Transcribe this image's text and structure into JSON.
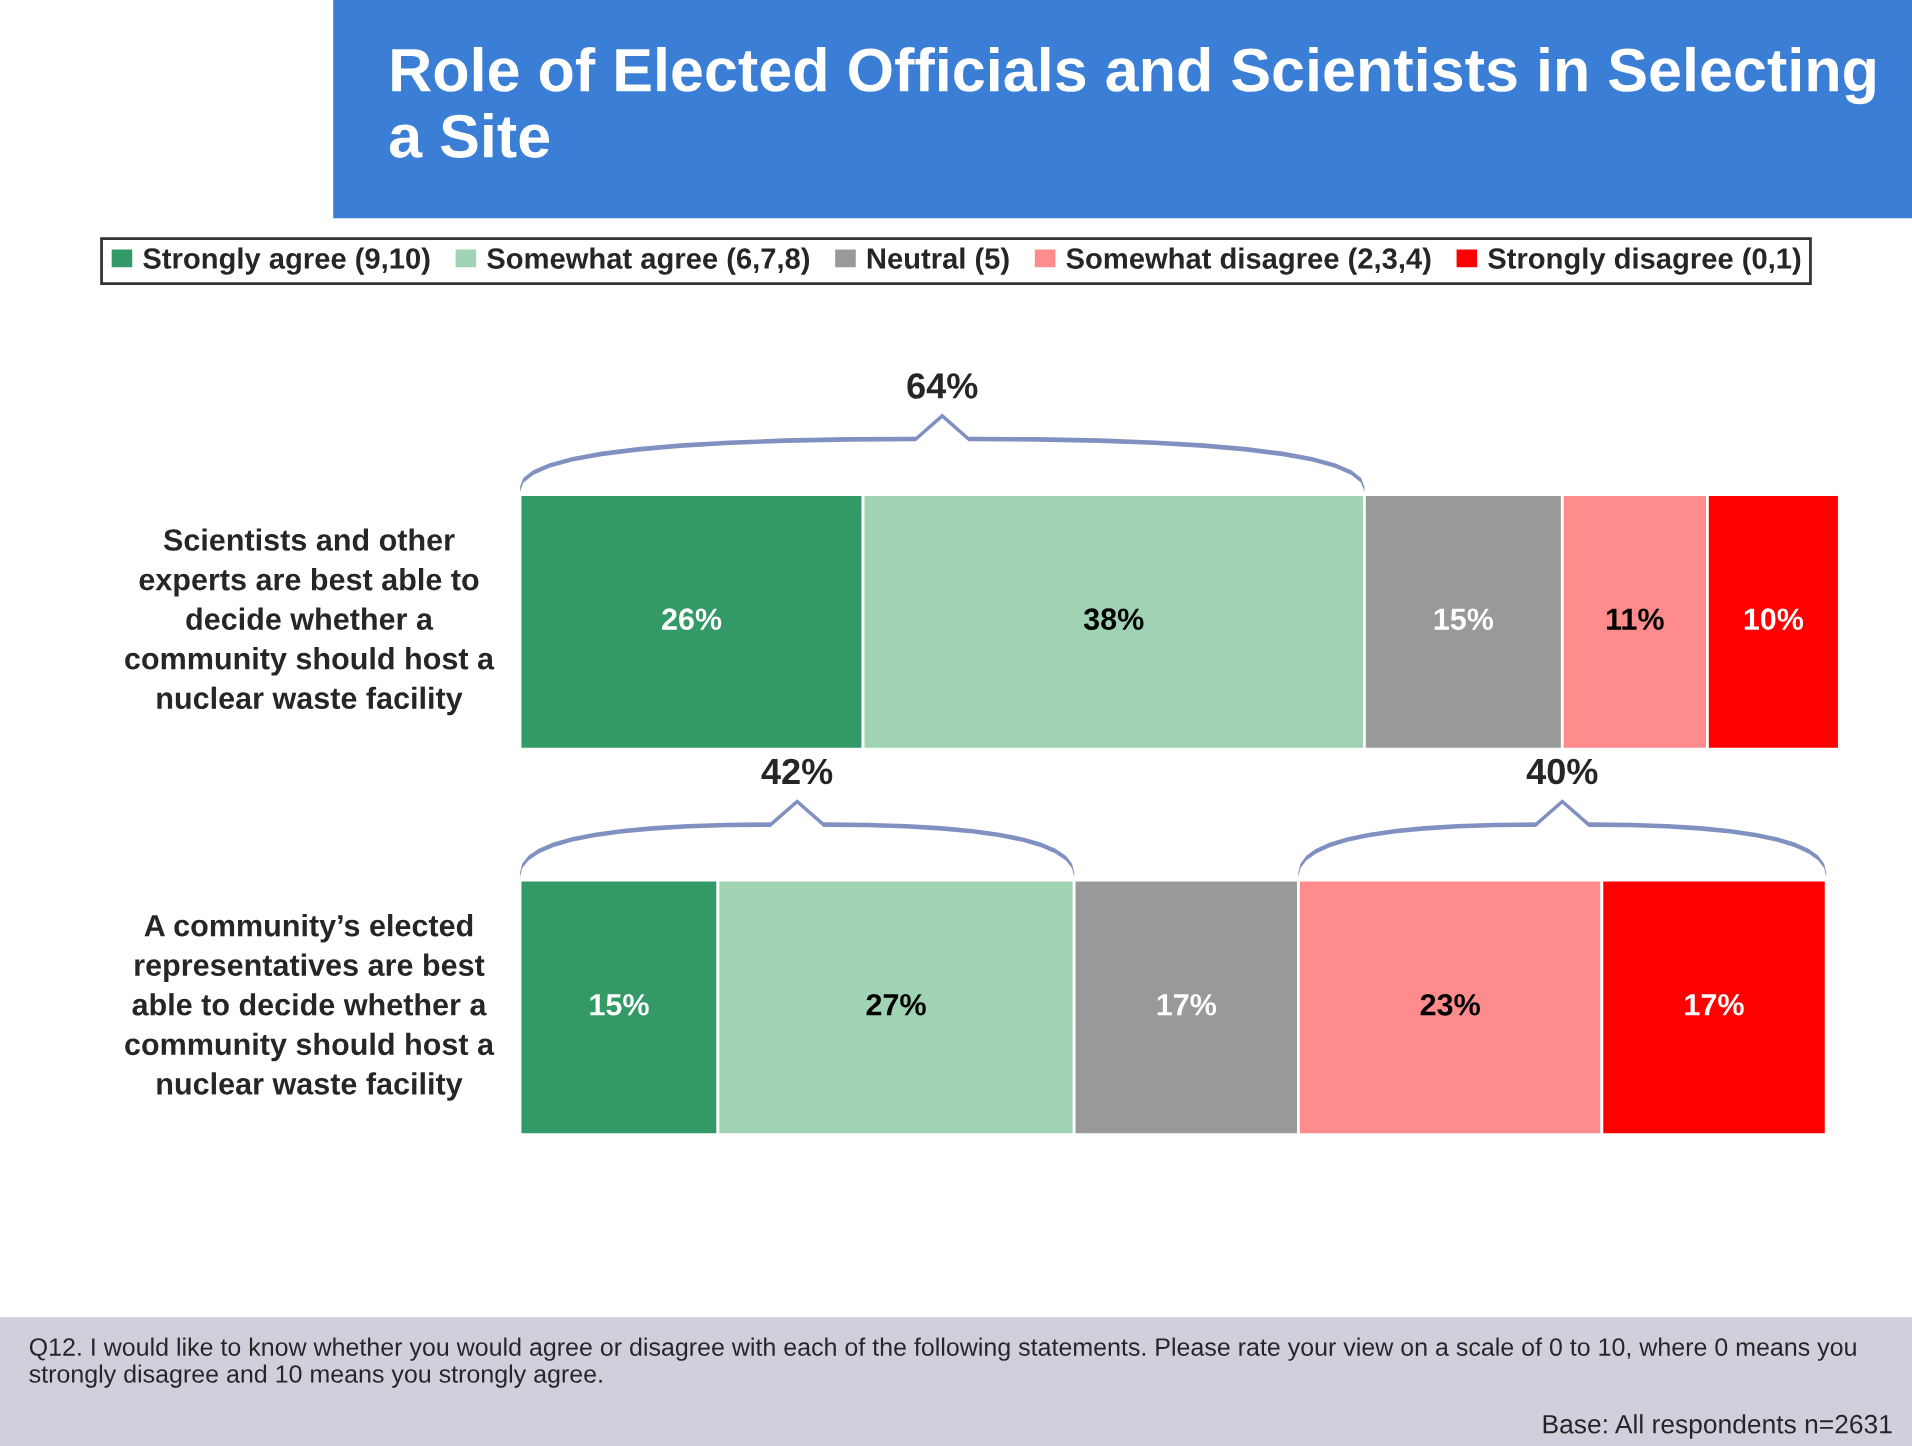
{
  "chart_data": {
    "type": "bar",
    "orientation": "horizontal",
    "stacked": true,
    "title": "Role of Elected Officials and Scientists in Selecting a Site",
    "categories": [
      "Scientists and other experts are best able to decide whether a community should host a nuclear waste facility",
      "A community’s elected representatives are best able to decide whether a community should host a nuclear waste facility"
    ],
    "series": [
      {
        "name": "Strongly agree (9,10)",
        "color": "#339966",
        "values": [
          26,
          15
        ],
        "value_labels": [
          "26%",
          "15%"
        ]
      },
      {
        "name": "Somewhat agree (6,7,8)",
        "color": "#9fd3b3",
        "values": [
          38,
          27
        ],
        "value_labels": [
          "38%",
          "27%"
        ]
      },
      {
        "name": "Neutral (5)",
        "color": "#999999",
        "values": [
          15,
          17
        ],
        "value_labels": [
          "15%",
          "17%"
        ]
      },
      {
        "name": "Somewhat disagree (2,3,4)",
        "color": "#ff8c8c",
        "values": [
          11,
          23
        ],
        "value_labels": [
          "11%",
          "23%"
        ]
      },
      {
        "name": "Strongly disagree (0,1)",
        "color": "#ff0000",
        "values": [
          10,
          17
        ],
        "value_labels": [
          "10%",
          "17%"
        ]
      }
    ],
    "legend": "top",
    "annotations": [
      "64%",
      "42%",
      "40%",
      "Q12. I would like to know whether you would agree or disagree with each of the following statements. Please rate your view on a scale of 0 to 10, where 0 means you strongly disagree and 10 means you strongly agree.",
      "Base: All respondents n=2631"
    ]
  }
}
